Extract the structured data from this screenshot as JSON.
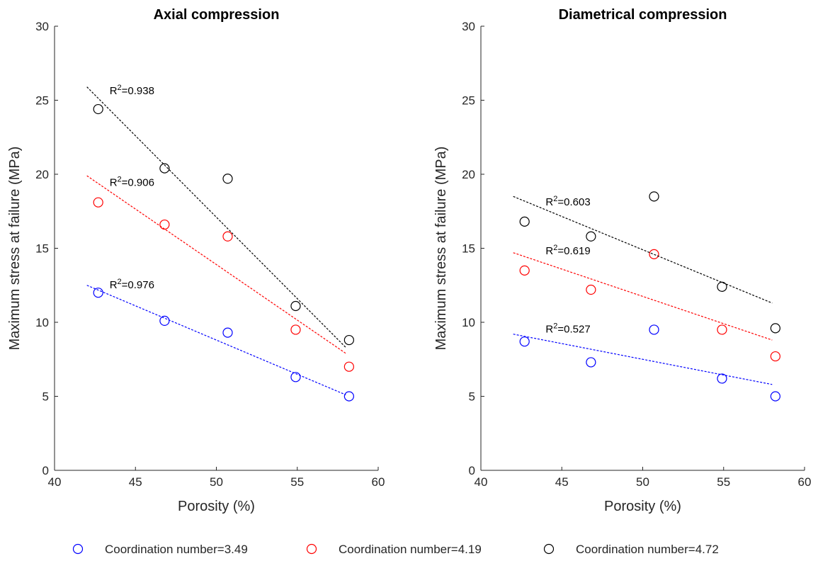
{
  "legend": [
    {
      "label": "Coordination number=3.49",
      "color": "#0000ff"
    },
    {
      "label": "Coordination number=4.19",
      "color": "#ff0000"
    },
    {
      "label": "Coordination number=4.72",
      "color": "#000000"
    }
  ],
  "chart_data": [
    {
      "type": "scatter",
      "title": "Axial compression",
      "xlabel": "Porosity (%)",
      "ylabel": "Maximum stress at failure (MPa)",
      "xlim": [
        40,
        60
      ],
      "ylim": [
        0,
        30
      ],
      "xticks": [
        "40",
        "45",
        "50",
        "55",
        "60"
      ],
      "yticks": [
        "0",
        "5",
        "10",
        "15",
        "20",
        "25",
        "30"
      ],
      "grid": false,
      "series": [
        {
          "name": "Coordination number=3.49",
          "color": "#0000ff",
          "x": [
            42.7,
            46.8,
            50.7,
            54.9,
            58.2
          ],
          "y": [
            12.0,
            10.1,
            9.3,
            6.3,
            5.0
          ],
          "fit": {
            "x": [
              42,
              58
            ],
            "y": [
              12.5,
              5.1
            ]
          },
          "r2_label": "0.976",
          "r2_pos": [
            43.4,
            12.3
          ]
        },
        {
          "name": "Coordination number=4.19",
          "color": "#ff0000",
          "x": [
            42.7,
            46.8,
            50.7,
            54.9,
            58.2
          ],
          "y": [
            18.1,
            16.6,
            15.8,
            9.5,
            7.0
          ],
          "fit": {
            "x": [
              42,
              58
            ],
            "y": [
              19.9,
              7.9
            ]
          },
          "r2_label": "0.906",
          "r2_pos": [
            43.4,
            19.2
          ]
        },
        {
          "name": "Coordination number=4.72",
          "color": "#000000",
          "x": [
            42.7,
            46.8,
            50.7,
            54.9,
            58.2
          ],
          "y": [
            24.4,
            20.4,
            19.7,
            11.1,
            8.8
          ],
          "fit": {
            "x": [
              42,
              58
            ],
            "y": [
              25.9,
              8.3
            ]
          },
          "r2_label": "0.938",
          "r2_pos": [
            43.4,
            25.4
          ]
        }
      ]
    },
    {
      "type": "scatter",
      "title": "Diametrical compression",
      "xlabel": "Porosity (%)",
      "ylabel": "Maximum stress at failure (MPa)",
      "xlim": [
        40,
        60
      ],
      "ylim": [
        0,
        30
      ],
      "xticks": [
        "40",
        "45",
        "50",
        "55",
        "60"
      ],
      "yticks": [
        "0",
        "5",
        "10",
        "15",
        "20",
        "25",
        "30"
      ],
      "grid": false,
      "series": [
        {
          "name": "Coordination number=3.49",
          "color": "#0000ff",
          "x": [
            42.7,
            46.8,
            50.7,
            54.9,
            58.2
          ],
          "y": [
            8.7,
            7.3,
            9.5,
            6.2,
            5.0
          ],
          "fit": {
            "x": [
              42,
              58
            ],
            "y": [
              9.2,
              5.8
            ]
          },
          "r2_label": "0.527",
          "r2_pos": [
            44.0,
            9.3
          ]
        },
        {
          "name": "Coordination number=4.19",
          "color": "#ff0000",
          "x": [
            42.7,
            46.8,
            50.7,
            54.9,
            58.2
          ],
          "y": [
            13.5,
            12.2,
            14.6,
            9.5,
            7.7
          ],
          "fit": {
            "x": [
              42,
              58
            ],
            "y": [
              14.7,
              8.8
            ]
          },
          "r2_label": "0.619",
          "r2_pos": [
            44.0,
            14.6
          ]
        },
        {
          "name": "Coordination number=4.72",
          "color": "#000000",
          "x": [
            42.7,
            46.8,
            50.7,
            54.9,
            58.2
          ],
          "y": [
            16.8,
            15.8,
            18.5,
            12.4,
            9.6
          ],
          "fit": {
            "x": [
              42,
              58
            ],
            "y": [
              18.5,
              11.3
            ]
          },
          "r2_label": "0.603",
          "r2_pos": [
            44.0,
            17.9
          ]
        }
      ]
    }
  ]
}
